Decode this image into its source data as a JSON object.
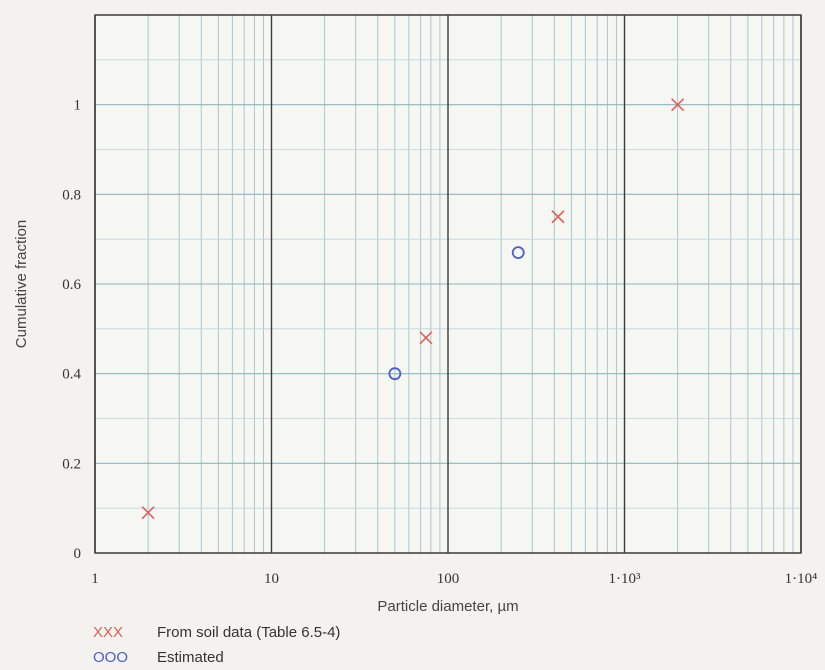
{
  "chart_data": {
    "type": "scatter",
    "xlabel": "Particle diameter, µm",
    "ylabel": "Cumulative fraction",
    "x_scale": "log",
    "xlim": [
      1,
      10000
    ],
    "ylim": [
      0,
      1.2
    ],
    "grid": true,
    "x_ticks": [
      {
        "value": 1,
        "label": "1"
      },
      {
        "value": 10,
        "label": "10"
      },
      {
        "value": 100,
        "label": "100"
      },
      {
        "value": 1000,
        "label": "1·10³"
      },
      {
        "value": 10000,
        "label": "1·10⁴"
      }
    ],
    "y_ticks": [
      {
        "value": 0,
        "label": "0"
      },
      {
        "value": 0.2,
        "label": "0.2"
      },
      {
        "value": 0.4,
        "label": "0.4"
      },
      {
        "value": 0.6,
        "label": "0.6"
      },
      {
        "value": 0.8,
        "label": "0.8"
      },
      {
        "value": 1,
        "label": "1"
      }
    ],
    "legend_position": "bottom-left",
    "series": [
      {
        "name": "From soil data (Table 6.5-4)",
        "legend_symbol": "XXX",
        "marker": "x",
        "color": "#e0605c",
        "points": [
          {
            "x": 2,
            "y": 0.09
          },
          {
            "x": 75,
            "y": 0.48
          },
          {
            "x": 420,
            "y": 0.75
          },
          {
            "x": 2000,
            "y": 1.0
          }
        ]
      },
      {
        "name": "Estimated",
        "legend_symbol": "OOO",
        "marker": "o",
        "color": "#4a5fc8",
        "points": [
          {
            "x": 50,
            "y": 0.4
          },
          {
            "x": 250,
            "y": 0.67
          }
        ]
      }
    ]
  }
}
